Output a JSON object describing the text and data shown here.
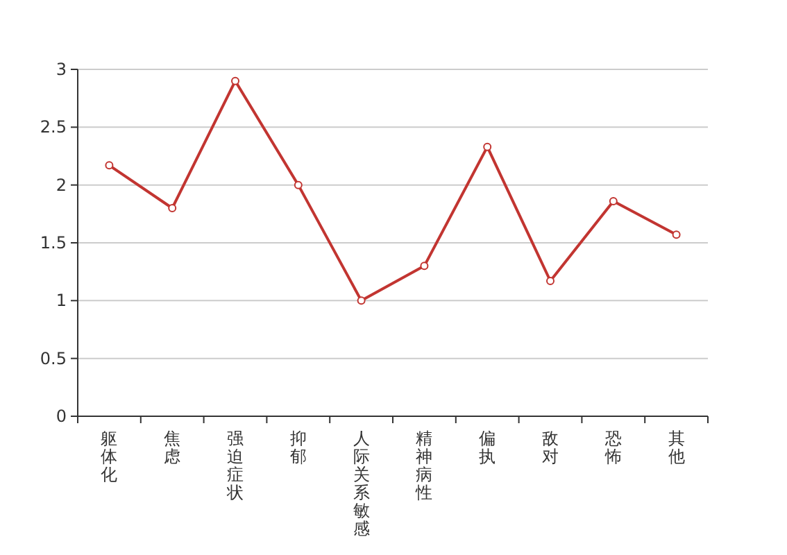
{
  "chart_data": {
    "type": "line",
    "categories": [
      "躯体化",
      "焦虑",
      "强迫症状",
      "抑郁",
      "人际关系敏感",
      "精神病性",
      "偏执",
      "敌对",
      "恐怖",
      "其他"
    ],
    "series": [
      {
        "color": "#c23531",
        "values": [
          2.17,
          1.8,
          2.9,
          2.0,
          1.0,
          1.3,
          2.33,
          1.17,
          1.86,
          1.57
        ]
      }
    ],
    "ylim": [
      0,
      3
    ],
    "yticks": [
      0,
      0.5,
      1,
      1.5,
      2,
      2.5,
      3
    ],
    "grid": "y",
    "marker": "circle",
    "line_style": "solid"
  }
}
